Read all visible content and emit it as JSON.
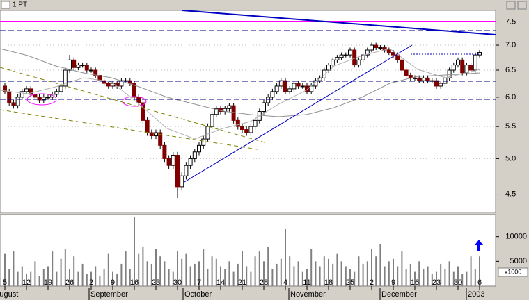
{
  "window_title": "1 PT",
  "chart_data": {
    "type": "candlestick",
    "categories": [
      "5",
      null,
      null,
      null,
      null,
      "12",
      null,
      null,
      null,
      null,
      "19",
      null,
      null,
      null,
      null,
      "26",
      null,
      null,
      null,
      null,
      "2",
      null,
      null,
      null,
      null,
      "9",
      null,
      null,
      null,
      null,
      "16",
      null,
      null,
      null,
      null,
      "23",
      null,
      null,
      null,
      null,
      "30",
      null,
      null,
      null,
      null,
      "7",
      null,
      null,
      null,
      null,
      "14",
      null,
      null,
      null,
      null,
      "21",
      null,
      null,
      null,
      null,
      "28",
      null,
      null,
      null,
      null,
      "4",
      null,
      null,
      null,
      null,
      "11",
      null,
      null,
      null,
      null,
      "18",
      null,
      null,
      null,
      null,
      "25",
      null,
      null,
      null,
      null,
      "2",
      null,
      null,
      null,
      null,
      "9",
      null,
      null,
      null,
      null,
      "16",
      null,
      null,
      null,
      null,
      "23",
      null,
      null,
      null,
      null,
      "30",
      null,
      null,
      null,
      null,
      "6"
    ],
    "open": [
      6.2,
      6.1,
      5.9,
      5.85,
      6.0,
      6.1,
      6.15,
      6.05,
      6.0,
      5.95,
      6.0,
      6.0,
      6.05,
      6.1,
      6.2,
      6.5,
      6.7,
      6.55,
      6.6,
      6.6,
      6.5,
      6.5,
      6.4,
      6.3,
      6.25,
      6.2,
      6.25,
      6.2,
      6.3,
      6.3,
      6.25,
      6.0,
      5.9,
      5.6,
      5.4,
      5.35,
      5.4,
      5.2,
      5.0,
      4.9,
      5.05,
      4.6,
      4.75,
      4.9,
      5.0,
      5.1,
      5.2,
      5.3,
      5.5,
      5.7,
      5.8,
      5.75,
      5.8,
      5.85,
      5.6,
      5.5,
      5.45,
      5.4,
      5.5,
      5.6,
      5.75,
      5.9,
      6.0,
      6.1,
      6.2,
      6.3,
      6.1,
      6.15,
      6.25,
      6.2,
      6.2,
      6.1,
      6.2,
      6.3,
      6.35,
      6.5,
      6.6,
      6.7,
      6.75,
      6.8,
      6.8,
      6.9,
      6.6,
      6.7,
      6.8,
      6.9,
      7.0,
      6.95,
      6.95,
      6.9,
      6.85,
      6.8,
      6.7,
      6.5,
      6.4,
      6.35,
      6.35,
      6.3,
      6.35,
      6.3,
      6.3,
      6.2,
      6.25,
      6.35,
      6.5,
      6.6,
      6.7,
      6.45,
      6.6,
      6.5,
      6.8
    ],
    "high": [
      6.25,
      6.15,
      5.95,
      6.05,
      6.15,
      6.2,
      6.2,
      6.1,
      6.05,
      6.05,
      6.05,
      6.1,
      6.15,
      6.25,
      6.55,
      6.8,
      6.75,
      6.65,
      6.65,
      6.65,
      6.55,
      6.55,
      6.45,
      6.35,
      6.3,
      6.3,
      6.3,
      6.35,
      6.35,
      6.35,
      6.3,
      6.05,
      5.95,
      5.65,
      5.45,
      5.45,
      5.45,
      5.25,
      5.05,
      5.1,
      5.1,
      4.8,
      4.95,
      5.05,
      5.15,
      5.25,
      5.35,
      5.55,
      5.75,
      5.85,
      5.85,
      5.85,
      5.9,
      5.9,
      5.65,
      5.55,
      5.5,
      5.55,
      5.65,
      5.8,
      5.95,
      6.05,
      6.15,
      6.25,
      6.35,
      6.35,
      6.2,
      6.3,
      6.3,
      6.25,
      6.25,
      6.25,
      6.35,
      6.4,
      6.55,
      6.65,
      6.75,
      6.8,
      6.85,
      6.85,
      6.95,
      6.95,
      6.75,
      6.85,
      6.95,
      7.05,
      7.05,
      7.0,
      7.0,
      6.95,
      6.9,
      6.85,
      6.75,
      6.55,
      6.45,
      6.4,
      6.4,
      6.4,
      6.4,
      6.35,
      6.35,
      6.3,
      6.4,
      6.55,
      6.65,
      6.75,
      6.75,
      6.65,
      6.65,
      6.85,
      6.9
    ],
    "low": [
      6.05,
      5.85,
      5.8,
      5.8,
      5.95,
      6.05,
      6.0,
      5.95,
      5.9,
      5.9,
      5.95,
      5.95,
      6.0,
      6.05,
      6.15,
      6.45,
      6.5,
      6.5,
      6.55,
      6.45,
      6.45,
      6.35,
      6.25,
      6.2,
      6.15,
      6.15,
      6.15,
      6.15,
      6.25,
      6.2,
      5.95,
      5.85,
      5.55,
      5.35,
      5.3,
      5.3,
      5.15,
      4.95,
      4.85,
      4.85,
      4.45,
      4.55,
      4.7,
      4.85,
      4.95,
      5.05,
      5.15,
      5.25,
      5.45,
      5.65,
      5.7,
      5.7,
      5.75,
      5.55,
      5.45,
      5.4,
      5.35,
      5.35,
      5.45,
      5.55,
      5.7,
      5.85,
      5.95,
      6.05,
      6.15,
      6.05,
      6.05,
      6.1,
      6.15,
      6.15,
      6.05,
      6.05,
      6.15,
      6.25,
      6.3,
      6.45,
      6.55,
      6.65,
      6.7,
      6.75,
      6.75,
      6.55,
      6.55,
      6.65,
      6.75,
      6.85,
      6.9,
      6.9,
      6.85,
      6.8,
      6.75,
      6.65,
      6.45,
      6.35,
      6.3,
      6.3,
      6.25,
      6.25,
      6.25,
      6.25,
      6.15,
      6.15,
      6.2,
      6.3,
      6.45,
      6.55,
      6.4,
      6.4,
      6.45,
      6.45,
      6.75
    ],
    "close": [
      6.1,
      5.9,
      5.85,
      6.0,
      6.1,
      6.15,
      6.05,
      6.0,
      5.95,
      6.0,
      6.0,
      6.05,
      6.1,
      6.2,
      6.5,
      6.7,
      6.55,
      6.6,
      6.6,
      6.5,
      6.5,
      6.4,
      6.3,
      6.25,
      6.2,
      6.25,
      6.2,
      6.3,
      6.3,
      6.25,
      6.0,
      5.9,
      5.6,
      5.4,
      5.35,
      5.4,
      5.2,
      5.0,
      4.9,
      5.05,
      4.6,
      4.75,
      4.9,
      5.0,
      5.1,
      5.2,
      5.3,
      5.5,
      5.7,
      5.8,
      5.75,
      5.8,
      5.85,
      5.6,
      5.5,
      5.45,
      5.4,
      5.5,
      5.6,
      5.75,
      5.9,
      6.0,
      6.1,
      6.2,
      6.3,
      6.1,
      6.15,
      6.25,
      6.2,
      6.2,
      6.1,
      6.2,
      6.3,
      6.35,
      6.5,
      6.6,
      6.7,
      6.75,
      6.8,
      6.8,
      6.9,
      6.6,
      6.7,
      6.8,
      6.9,
      7.0,
      6.95,
      6.95,
      6.9,
      6.85,
      6.8,
      6.7,
      6.5,
      6.4,
      6.35,
      6.35,
      6.3,
      6.35,
      6.3,
      6.3,
      6.2,
      6.25,
      6.35,
      6.5,
      6.6,
      6.7,
      6.45,
      6.6,
      6.5,
      6.8,
      6.85
    ],
    "up_color": "#ffffff",
    "down_color": "#800000",
    "ylim": [
      4.27,
      7.76
    ],
    "log_scale": true,
    "yticks": [
      4.5,
      {
        "value": 5,
        "label": "5.0"
      },
      5.5,
      {
        "value": 6,
        "label": "6.0"
      },
      6.5,
      {
        "value": 7,
        "label": "7.0"
      },
      7.5
    ],
    "volume": {
      "values": [
        6500,
        3500,
        7000,
        3000,
        4000,
        2500,
        3000,
        5000,
        2000,
        3500,
        4000,
        7000,
        3000,
        5500,
        7500,
        3500,
        6000,
        3000,
        4500,
        2500,
        3000,
        4000,
        2000,
        3500,
        6500,
        3000,
        2500,
        4500,
        7000,
        3500,
        14000,
        6500,
        8000,
        5000,
        4500,
        7500,
        6000,
        5000,
        3500,
        3000,
        7000,
        5500,
        6500,
        4000,
        4500,
        5000,
        7500,
        3500,
        6000,
        5500,
        4000,
        3500,
        5000,
        3000,
        4500,
        7000,
        4000,
        3000,
        6000,
        7000,
        5000,
        8000,
        3500,
        4500,
        5500,
        11500,
        6000,
        4000,
        5000,
        3000,
        3500,
        7500,
        5000,
        4000,
        6000,
        5500,
        4500,
        6500,
        5000,
        4000,
        3500,
        3000,
        6000,
        4500,
        5000,
        7500,
        6000,
        8500,
        4000,
        5000,
        5500,
        4000,
        7000,
        3500,
        4500,
        3000,
        5000,
        3500,
        4000,
        2500,
        3000,
        4500,
        3500,
        5000,
        3000,
        4000,
        2500,
        3000,
        6000,
        3500,
        6000
      ],
      "ylim": [
        0,
        14300
      ],
      "yticks": [
        5000,
        10000
      ],
      "unit_label": "x1000",
      "color": "#808080"
    },
    "months": [
      "August",
      "September",
      "October",
      "November",
      "December",
      "2003"
    ]
  }
}
